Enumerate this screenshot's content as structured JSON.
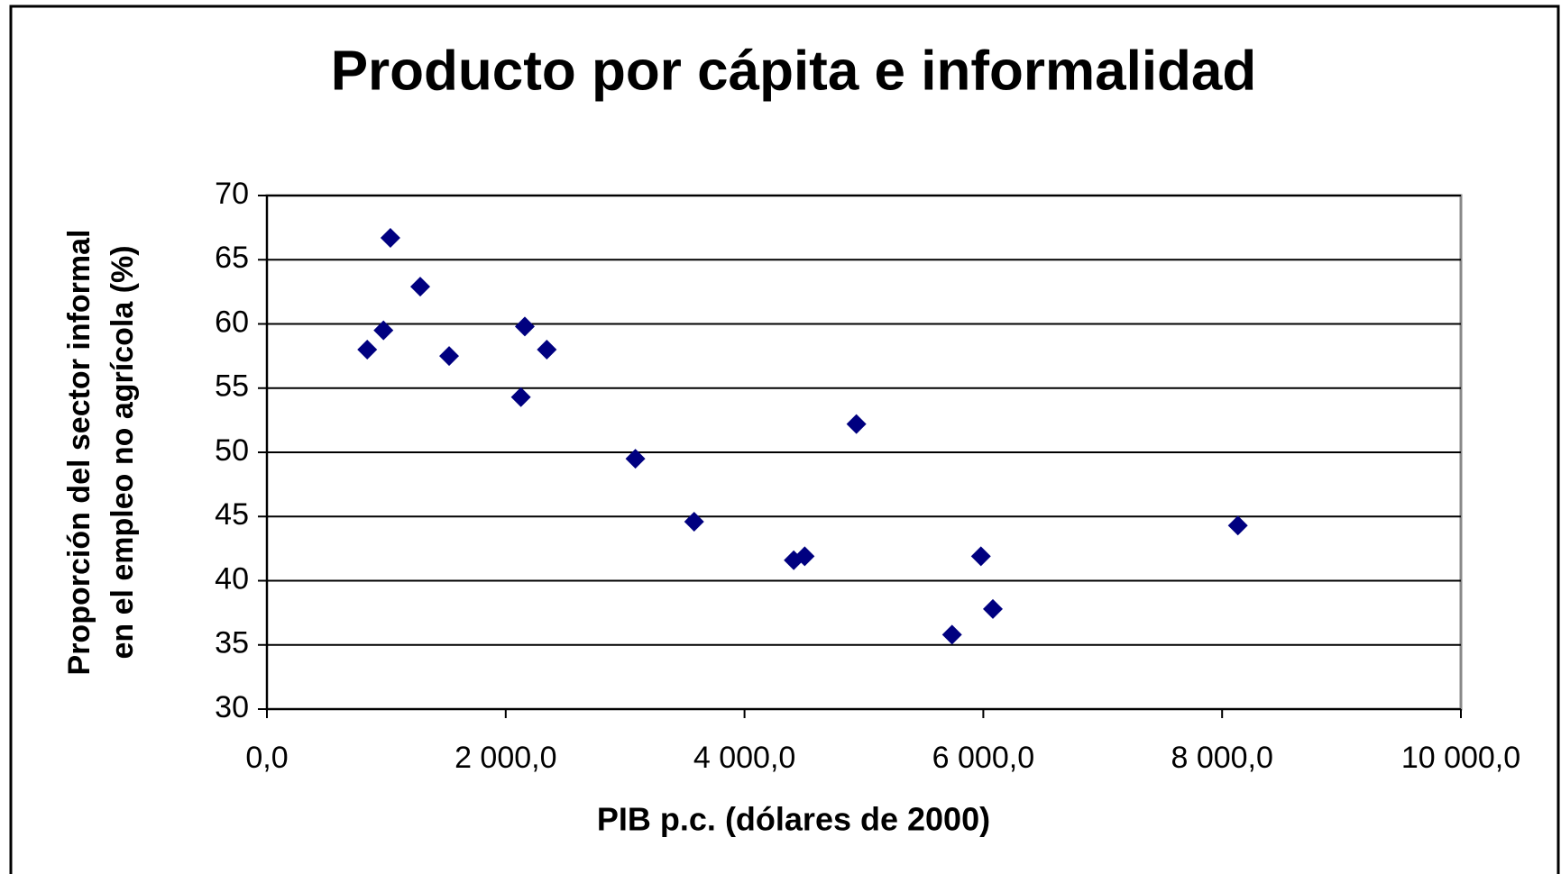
{
  "chart_data": {
    "type": "scatter",
    "title": "Producto por cápita e informalidad",
    "xlabel": "PIB p.c. (dólares de 2000)",
    "ylabel": [
      "Proporción del sector informal",
      "en el empleo no agrícola (%)"
    ],
    "x": [
      840,
      1034,
      976,
      1284,
      1526,
      2160,
      2344,
      2127,
      3086,
      3578,
      4412,
      4504,
      4937,
      5738,
      5980,
      6080,
      8132
    ],
    "values": [
      58.0,
      66.7,
      59.5,
      62.9,
      57.5,
      59.8,
      58.0,
      54.3,
      49.5,
      44.6,
      41.6,
      41.9,
      52.2,
      35.8,
      41.9,
      37.8,
      44.3
    ],
    "color": "#000080",
    "xlim": [
      0,
      10000
    ],
    "xticks": [
      {
        "value": 0,
        "label": "0,0"
      },
      {
        "value": 2000,
        "label": "2 000,0"
      },
      {
        "value": 4000,
        "label": "4 000,0"
      },
      {
        "value": 6000,
        "label": "6 000,0"
      },
      {
        "value": 8000,
        "label": "8 000,0"
      },
      {
        "value": 10000,
        "label": "10 000,0"
      }
    ],
    "ylim": [
      30,
      70
    ],
    "yticks": [
      30,
      35,
      40,
      45,
      50,
      55,
      60,
      65,
      70
    ],
    "grid": true
  }
}
